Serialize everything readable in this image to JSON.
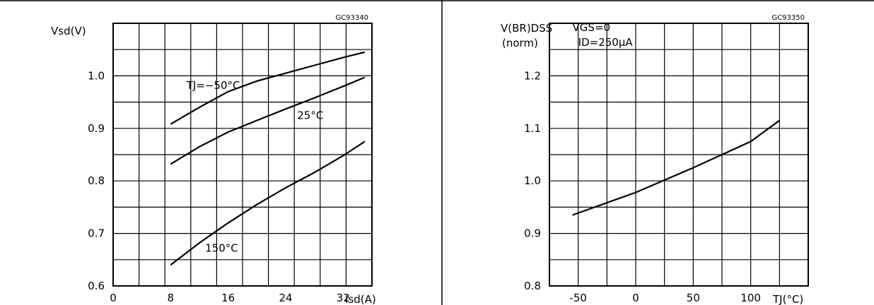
{
  "chart_data": [
    {
      "type": "line",
      "figure_code": "GC93340",
      "xlabel": "Isd(A)",
      "ylabel": "Vsd(V)",
      "xlim": [
        0,
        36
      ],
      "ylim": [
        0.6,
        1.1
      ],
      "x_ticks": [
        "0",
        "8",
        "16",
        "24",
        "32"
      ],
      "y_ticks": [
        "0.6",
        "0.7",
        "0.8",
        "0.9",
        "1.0"
      ],
      "grid": true,
      "series": [
        {
          "name": "TJ=−50°C",
          "x": [
            8,
            12,
            16,
            20,
            24,
            28,
            32,
            35
          ],
          "y": [
            0.908,
            0.94,
            0.97,
            0.99,
            1.005,
            1.02,
            1.035,
            1.045
          ]
        },
        {
          "name": "25°C",
          "x": [
            8,
            12,
            16,
            20,
            24,
            28,
            32,
            35
          ],
          "y": [
            0.832,
            0.865,
            0.893,
            0.915,
            0.937,
            0.958,
            0.98,
            0.997
          ]
        },
        {
          "name": "150°C",
          "x": [
            8,
            12,
            16,
            20,
            24,
            28,
            32,
            35
          ],
          "y": [
            0.64,
            0.682,
            0.72,
            0.755,
            0.787,
            0.816,
            0.848,
            0.875
          ]
        }
      ],
      "annotations": [
        {
          "text": "TJ=−50°C",
          "x": 10.2,
          "y": 0.975
        },
        {
          "text": "25°C",
          "x": 25.6,
          "y": 0.918
        },
        {
          "text": "150°C",
          "x": 12.8,
          "y": 0.665
        }
      ]
    },
    {
      "type": "line",
      "figure_code": "GC93350",
      "xlabel": "TJ(°C)",
      "ylabel": "V(BR)DSS (norm)",
      "ylabel_lines": [
        "V(BR)DSS",
        "(norm)"
      ],
      "xlim": [
        -75,
        150
      ],
      "ylim": [
        0.8,
        1.3
      ],
      "x_ticks": [
        "-50",
        "0",
        "50",
        "100"
      ],
      "y_ticks": [
        "0.8",
        "0.9",
        "1.0",
        "1.1",
        "1.2"
      ],
      "grid": true,
      "series": [
        {
          "name": "",
          "x": [
            -55,
            0,
            50,
            100,
            125
          ],
          "y": [
            0.935,
            0.978,
            1.025,
            1.075,
            1.115
          ]
        }
      ],
      "annotations": [
        {
          "text": "VGS=0",
          "x": -55,
          "y": 1.285
        },
        {
          "text": "ID=250µA",
          "x": -50,
          "y": 1.257
        }
      ]
    }
  ]
}
